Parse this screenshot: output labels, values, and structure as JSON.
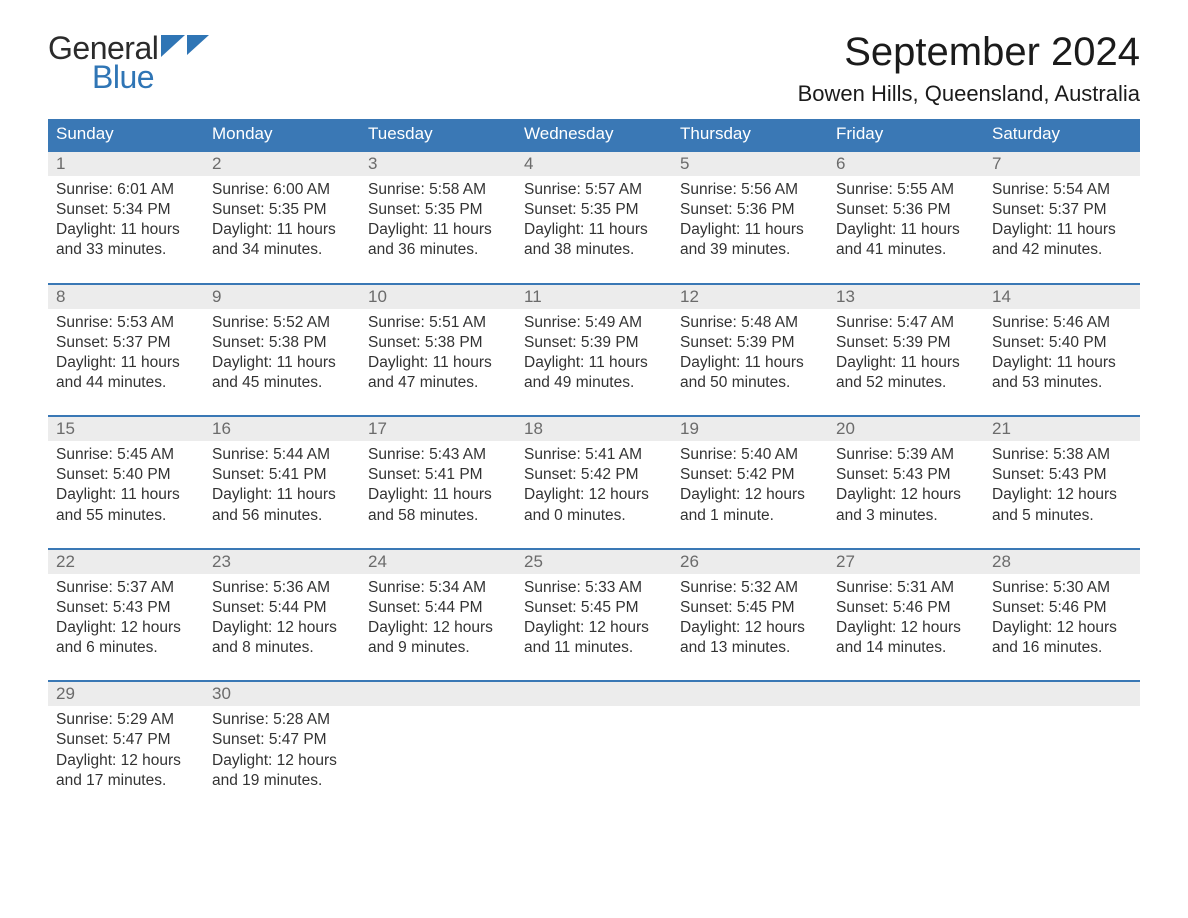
{
  "logo": {
    "text1": "General",
    "text2": "Blue",
    "tri_color": "#2f75b5"
  },
  "title": "September 2024",
  "location": "Bowen Hills, Queensland, Australia",
  "colors": {
    "header_bg": "#3a78b5",
    "header_text": "#ffffff",
    "daynum_bg": "#ececec",
    "daynum_text": "#6b6b6b",
    "body_text": "#333333",
    "rule": "#3a78b5",
    "page_bg": "#ffffff",
    "logo_blue": "#2f75b5"
  },
  "typography": {
    "title_pt": 40,
    "location_pt": 22,
    "dayhead_pt": 17,
    "daynum_pt": 17,
    "cell_pt": 15.5
  },
  "day_headers": [
    "Sunday",
    "Monday",
    "Tuesday",
    "Wednesday",
    "Thursday",
    "Friday",
    "Saturday"
  ],
  "weeks": [
    [
      {
        "n": "1",
        "sunrise": "Sunrise: 6:01 AM",
        "sunset": "Sunset: 5:34 PM",
        "day": "Daylight: 11 hours and 33 minutes."
      },
      {
        "n": "2",
        "sunrise": "Sunrise: 6:00 AM",
        "sunset": "Sunset: 5:35 PM",
        "day": "Daylight: 11 hours and 34 minutes."
      },
      {
        "n": "3",
        "sunrise": "Sunrise: 5:58 AM",
        "sunset": "Sunset: 5:35 PM",
        "day": "Daylight: 11 hours and 36 minutes."
      },
      {
        "n": "4",
        "sunrise": "Sunrise: 5:57 AM",
        "sunset": "Sunset: 5:35 PM",
        "day": "Daylight: 11 hours and 38 minutes."
      },
      {
        "n": "5",
        "sunrise": "Sunrise: 5:56 AM",
        "sunset": "Sunset: 5:36 PM",
        "day": "Daylight: 11 hours and 39 minutes."
      },
      {
        "n": "6",
        "sunrise": "Sunrise: 5:55 AM",
        "sunset": "Sunset: 5:36 PM",
        "day": "Daylight: 11 hours and 41 minutes."
      },
      {
        "n": "7",
        "sunrise": "Sunrise: 5:54 AM",
        "sunset": "Sunset: 5:37 PM",
        "day": "Daylight: 11 hours and 42 minutes."
      }
    ],
    [
      {
        "n": "8",
        "sunrise": "Sunrise: 5:53 AM",
        "sunset": "Sunset: 5:37 PM",
        "day": "Daylight: 11 hours and 44 minutes."
      },
      {
        "n": "9",
        "sunrise": "Sunrise: 5:52 AM",
        "sunset": "Sunset: 5:38 PM",
        "day": "Daylight: 11 hours and 45 minutes."
      },
      {
        "n": "10",
        "sunrise": "Sunrise: 5:51 AM",
        "sunset": "Sunset: 5:38 PM",
        "day": "Daylight: 11 hours and 47 minutes."
      },
      {
        "n": "11",
        "sunrise": "Sunrise: 5:49 AM",
        "sunset": "Sunset: 5:39 PM",
        "day": "Daylight: 11 hours and 49 minutes."
      },
      {
        "n": "12",
        "sunrise": "Sunrise: 5:48 AM",
        "sunset": "Sunset: 5:39 PM",
        "day": "Daylight: 11 hours and 50 minutes."
      },
      {
        "n": "13",
        "sunrise": "Sunrise: 5:47 AM",
        "sunset": "Sunset: 5:39 PM",
        "day": "Daylight: 11 hours and 52 minutes."
      },
      {
        "n": "14",
        "sunrise": "Sunrise: 5:46 AM",
        "sunset": "Sunset: 5:40 PM",
        "day": "Daylight: 11 hours and 53 minutes."
      }
    ],
    [
      {
        "n": "15",
        "sunrise": "Sunrise: 5:45 AM",
        "sunset": "Sunset: 5:40 PM",
        "day": "Daylight: 11 hours and 55 minutes."
      },
      {
        "n": "16",
        "sunrise": "Sunrise: 5:44 AM",
        "sunset": "Sunset: 5:41 PM",
        "day": "Daylight: 11 hours and 56 minutes."
      },
      {
        "n": "17",
        "sunrise": "Sunrise: 5:43 AM",
        "sunset": "Sunset: 5:41 PM",
        "day": "Daylight: 11 hours and 58 minutes."
      },
      {
        "n": "18",
        "sunrise": "Sunrise: 5:41 AM",
        "sunset": "Sunset: 5:42 PM",
        "day": "Daylight: 12 hours and 0 minutes."
      },
      {
        "n": "19",
        "sunrise": "Sunrise: 5:40 AM",
        "sunset": "Sunset: 5:42 PM",
        "day": "Daylight: 12 hours and 1 minute."
      },
      {
        "n": "20",
        "sunrise": "Sunrise: 5:39 AM",
        "sunset": "Sunset: 5:43 PM",
        "day": "Daylight: 12 hours and 3 minutes."
      },
      {
        "n": "21",
        "sunrise": "Sunrise: 5:38 AM",
        "sunset": "Sunset: 5:43 PM",
        "day": "Daylight: 12 hours and 5 minutes."
      }
    ],
    [
      {
        "n": "22",
        "sunrise": "Sunrise: 5:37 AM",
        "sunset": "Sunset: 5:43 PM",
        "day": "Daylight: 12 hours and 6 minutes."
      },
      {
        "n": "23",
        "sunrise": "Sunrise: 5:36 AM",
        "sunset": "Sunset: 5:44 PM",
        "day": "Daylight: 12 hours and 8 minutes."
      },
      {
        "n": "24",
        "sunrise": "Sunrise: 5:34 AM",
        "sunset": "Sunset: 5:44 PM",
        "day": "Daylight: 12 hours and 9 minutes."
      },
      {
        "n": "25",
        "sunrise": "Sunrise: 5:33 AM",
        "sunset": "Sunset: 5:45 PM",
        "day": "Daylight: 12 hours and 11 minutes."
      },
      {
        "n": "26",
        "sunrise": "Sunrise: 5:32 AM",
        "sunset": "Sunset: 5:45 PM",
        "day": "Daylight: 12 hours and 13 minutes."
      },
      {
        "n": "27",
        "sunrise": "Sunrise: 5:31 AM",
        "sunset": "Sunset: 5:46 PM",
        "day": "Daylight: 12 hours and 14 minutes."
      },
      {
        "n": "28",
        "sunrise": "Sunrise: 5:30 AM",
        "sunset": "Sunset: 5:46 PM",
        "day": "Daylight: 12 hours and 16 minutes."
      }
    ],
    [
      {
        "n": "29",
        "sunrise": "Sunrise: 5:29 AM",
        "sunset": "Sunset: 5:47 PM",
        "day": "Daylight: 12 hours and 17 minutes."
      },
      {
        "n": "30",
        "sunrise": "Sunrise: 5:28 AM",
        "sunset": "Sunset: 5:47 PM",
        "day": "Daylight: 12 hours and 19 minutes."
      },
      null,
      null,
      null,
      null,
      null
    ]
  ]
}
